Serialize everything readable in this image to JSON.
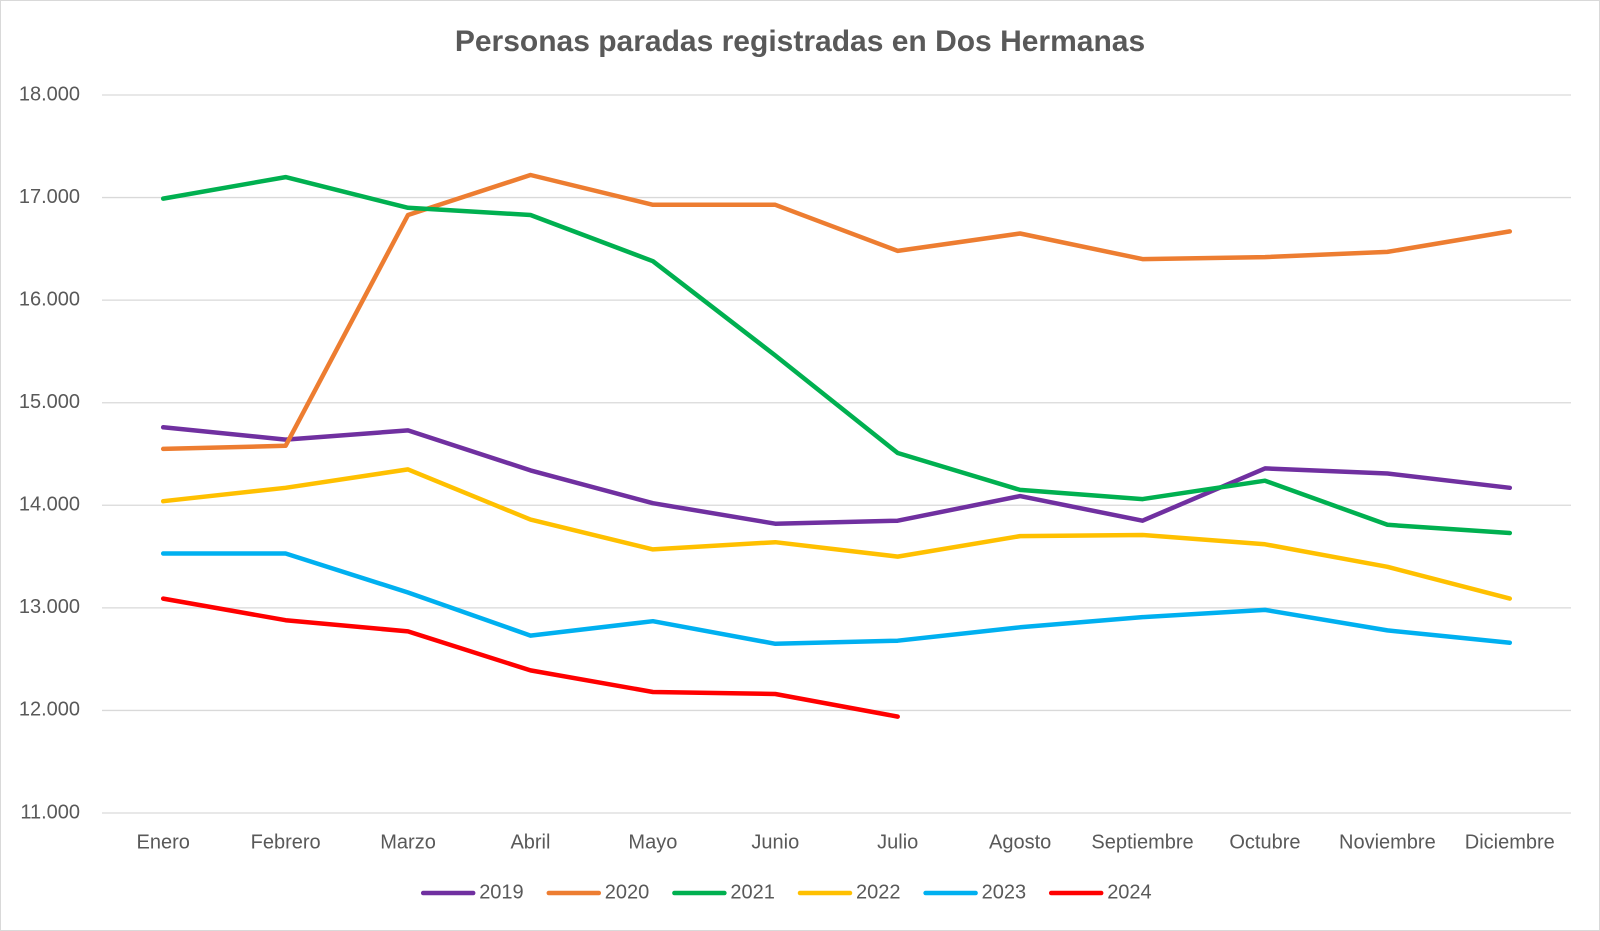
{
  "chart_data": {
    "type": "line",
    "title": "Personas paradas registradas en Dos Hermanas",
    "categories": [
      "Enero",
      "Febrero",
      "Marzo",
      "Abril",
      "Mayo",
      "Junio",
      "Julio",
      "Agosto",
      "Septiembre",
      "Octubre",
      "Noviembre",
      "Diciembre"
    ],
    "series": [
      {
        "name": "2019",
        "color": "#7030a0",
        "values": [
          14760,
          14640,
          14730,
          14340,
          14020,
          13820,
          13850,
          14090,
          13850,
          14360,
          14310,
          14170
        ]
      },
      {
        "name": "2020",
        "color": "#ed7d31",
        "values": [
          14550,
          14580,
          16830,
          17220,
          16930,
          16930,
          16480,
          16650,
          16400,
          16420,
          16470,
          16670
        ]
      },
      {
        "name": "2021",
        "color": "#00b050",
        "values": [
          16990,
          17200,
          16900,
          16830,
          16380,
          15460,
          14510,
          14150,
          14060,
          14240,
          13810,
          13730
        ]
      },
      {
        "name": "2022",
        "color": "#ffc000",
        "values": [
          14040,
          14170,
          14350,
          13860,
          13570,
          13640,
          13500,
          13700,
          13710,
          13620,
          13400,
          13090
        ]
      },
      {
        "name": "2023",
        "color": "#00b0f0",
        "values": [
          13530,
          13530,
          13150,
          12730,
          12870,
          12650,
          12680,
          12810,
          12910,
          12980,
          12780,
          12660
        ]
      },
      {
        "name": "2024",
        "color": "#ff0000",
        "values": [
          13090,
          12880,
          12770,
          12390,
          12180,
          12160,
          11940,
          null,
          null,
          null,
          null,
          null
        ]
      }
    ],
    "ylim": [
      11000,
      18000
    ],
    "yticks": [
      {
        "value": 11000,
        "label": "11.000"
      },
      {
        "value": 12000,
        "label": "12.000"
      },
      {
        "value": 13000,
        "label": "13.000"
      },
      {
        "value": 14000,
        "label": "14.000"
      },
      {
        "value": 15000,
        "label": "15.000"
      },
      {
        "value": 16000,
        "label": "16.000"
      },
      {
        "value": 17000,
        "label": "17.000"
      },
      {
        "value": 18000,
        "label": "18.000"
      }
    ],
    "grid": true,
    "legend": "bottom"
  }
}
